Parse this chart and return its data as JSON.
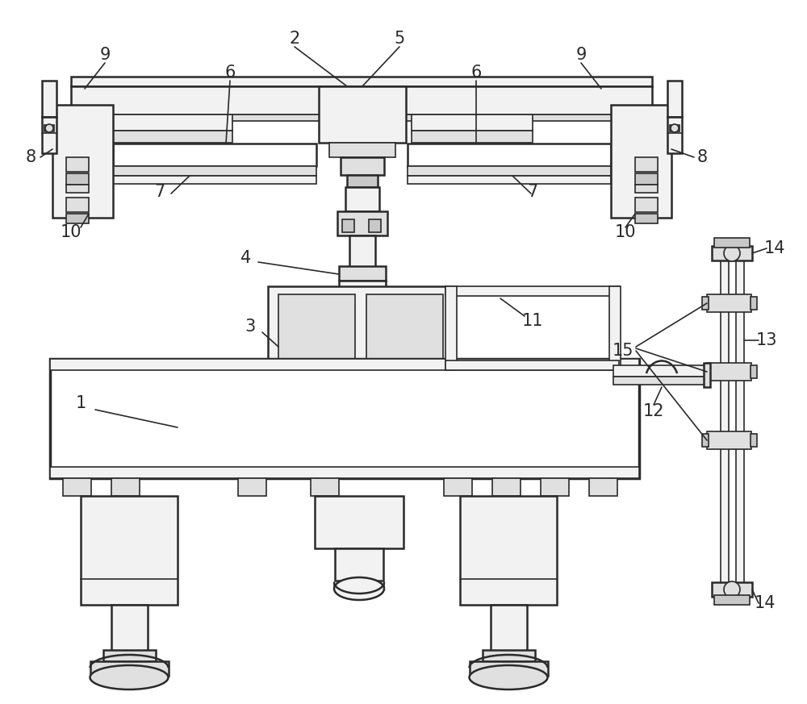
{
  "bg_color": "#ffffff",
  "lc": "#2a2a2a",
  "fc_white": "#ffffff",
  "fc_light": "#f2f2f2",
  "fc_mid": "#e0e0e0",
  "fc_dark": "#c8c8c8",
  "label_fontsize": 15
}
